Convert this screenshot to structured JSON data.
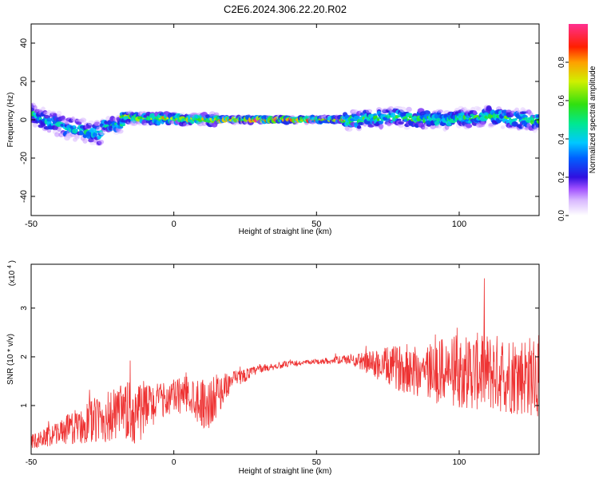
{
  "title": "C2E6.2024.306.22.20.R02",
  "colors": {
    "snr_line": "#ee3333",
    "axis": "#000000",
    "background": "#ffffff"
  },
  "chart_data": [
    {
      "type": "heatmap",
      "name": "spectrum",
      "xlabel": "Height of straight line (km)",
      "ylabel": "Frequency (Hz)",
      "xlim": [
        -50,
        128
      ],
      "ylim": [
        -50,
        50
      ],
      "x_ticks": [
        -50,
        0,
        50,
        100
      ],
      "y_ticks": [
        -40,
        -20,
        0,
        20,
        40
      ],
      "colorbar": {
        "label": "Normalized spectral amplitude",
        "range": [
          0,
          1
        ],
        "ticks": [
          0.0,
          0.2,
          0.4,
          0.6,
          0.8
        ],
        "tick_labels": [
          "0.0",
          "0.2",
          "0.4",
          "0.6",
          "0.8"
        ]
      },
      "bands": [
        {
          "x": [
            -50,
            -25
          ],
          "center": [
            3,
            -1,
            -4,
            -6,
            -8
          ],
          "spread": 6,
          "amp": 0.45
        },
        {
          "x": [
            -25,
            -18
          ],
          "center": [
            -3,
            -2
          ],
          "spread": 4,
          "amp": 0.5
        },
        {
          "x": [
            -18,
            15
          ],
          "center": [
            1,
            0
          ],
          "spread": 3,
          "amp": 0.7
        },
        {
          "x": [
            15,
            60
          ],
          "center": [
            0,
            0
          ],
          "spread": 1.5,
          "amp": 0.95
        },
        {
          "x": [
            60,
            128
          ],
          "center": [
            0,
            1,
            0,
            2,
            -1
          ],
          "spread": 5,
          "amp": 0.55
        }
      ]
    },
    {
      "type": "line",
      "name": "snr",
      "xlabel": "Height of straight line (km)",
      "ylabel": "SNR (10 * v/v)",
      "y_multiplier_label": "(x10",
      "y_multiplier_exp": "4",
      "y_multiplier_close": ")",
      "xlim": [
        -50,
        128
      ],
      "ylim": [
        0,
        3.9
      ],
      "x_ticks": [
        -50,
        0,
        50,
        100
      ],
      "y_ticks": [
        1,
        2,
        3
      ],
      "envelope": [
        {
          "x": -50,
          "mean": 0.25,
          "noise": 0.15
        },
        {
          "x": -40,
          "mean": 0.45,
          "noise": 0.25
        },
        {
          "x": -30,
          "mean": 0.65,
          "noise": 0.45
        },
        {
          "x": -20,
          "mean": 0.8,
          "noise": 0.6
        },
        {
          "x": -13,
          "mean": 0.85,
          "noise": 0.7
        },
        {
          "x": -5,
          "mean": 1.1,
          "noise": 0.35
        },
        {
          "x": 5,
          "mean": 1.25,
          "noise": 0.4
        },
        {
          "x": 12,
          "mean": 1.0,
          "noise": 0.55
        },
        {
          "x": 20,
          "mean": 1.5,
          "noise": 0.2
        },
        {
          "x": 30,
          "mean": 1.75,
          "noise": 0.08
        },
        {
          "x": 40,
          "mean": 1.85,
          "noise": 0.06
        },
        {
          "x": 50,
          "mean": 1.9,
          "noise": 0.05
        },
        {
          "x": 62,
          "mean": 1.95,
          "noise": 0.1
        },
        {
          "x": 75,
          "mean": 1.8,
          "noise": 0.4
        },
        {
          "x": 90,
          "mean": 1.7,
          "noise": 0.65
        },
        {
          "x": 105,
          "mean": 1.7,
          "noise": 0.8
        },
        {
          "x": 128,
          "mean": 1.6,
          "noise": 0.85
        }
      ]
    }
  ]
}
